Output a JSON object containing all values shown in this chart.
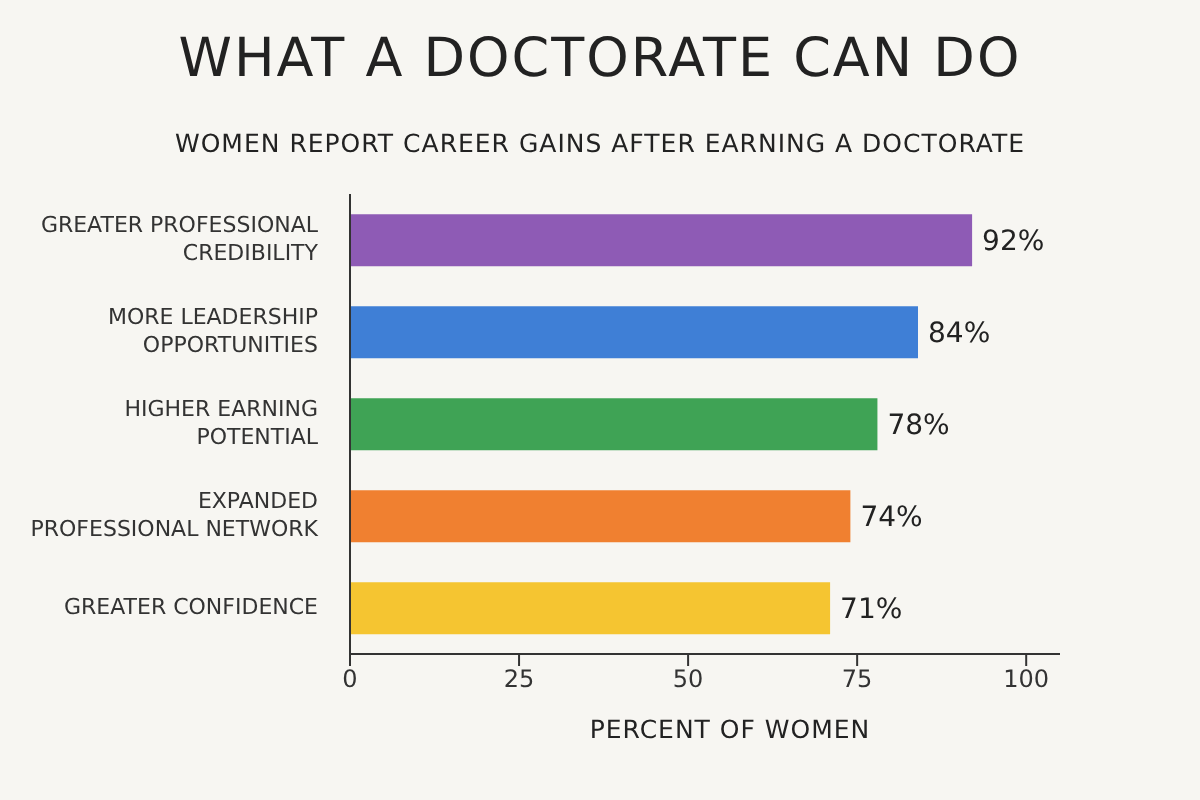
{
  "chart_data": {
    "type": "bar",
    "orientation": "horizontal",
    "title": "WHAT A DOCTORATE CAN DO",
    "subtitle": "WOMEN REPORT CAREER GAINS AFTER EARNING A DOCTORATE",
    "xlabel": "PERCENT OF WOMEN",
    "categories": [
      "GREATER PROFESSIONAL CREDIBILITY",
      "MORE LEADERSHIP OPPORTUNITIES",
      "HIGHER EARNING POTENTIAL",
      "EXPANDED PROFESSIONAL NETWORK",
      "GREATER CONFIDENCE"
    ],
    "values": [
      92,
      84,
      78,
      74,
      71
    ],
    "colors": [
      "#8e5bb5",
      "#3f7fd6",
      "#3fa355",
      "#f08030",
      "#f5c531"
    ],
    "value_labels": [
      "92%",
      "84%",
      "78%",
      "74%",
      "71%"
    ],
    "xlim": [
      0,
      105
    ],
    "xticks": [
      0,
      25,
      50,
      75,
      100
    ],
    "grid": false,
    "legend": false
  }
}
